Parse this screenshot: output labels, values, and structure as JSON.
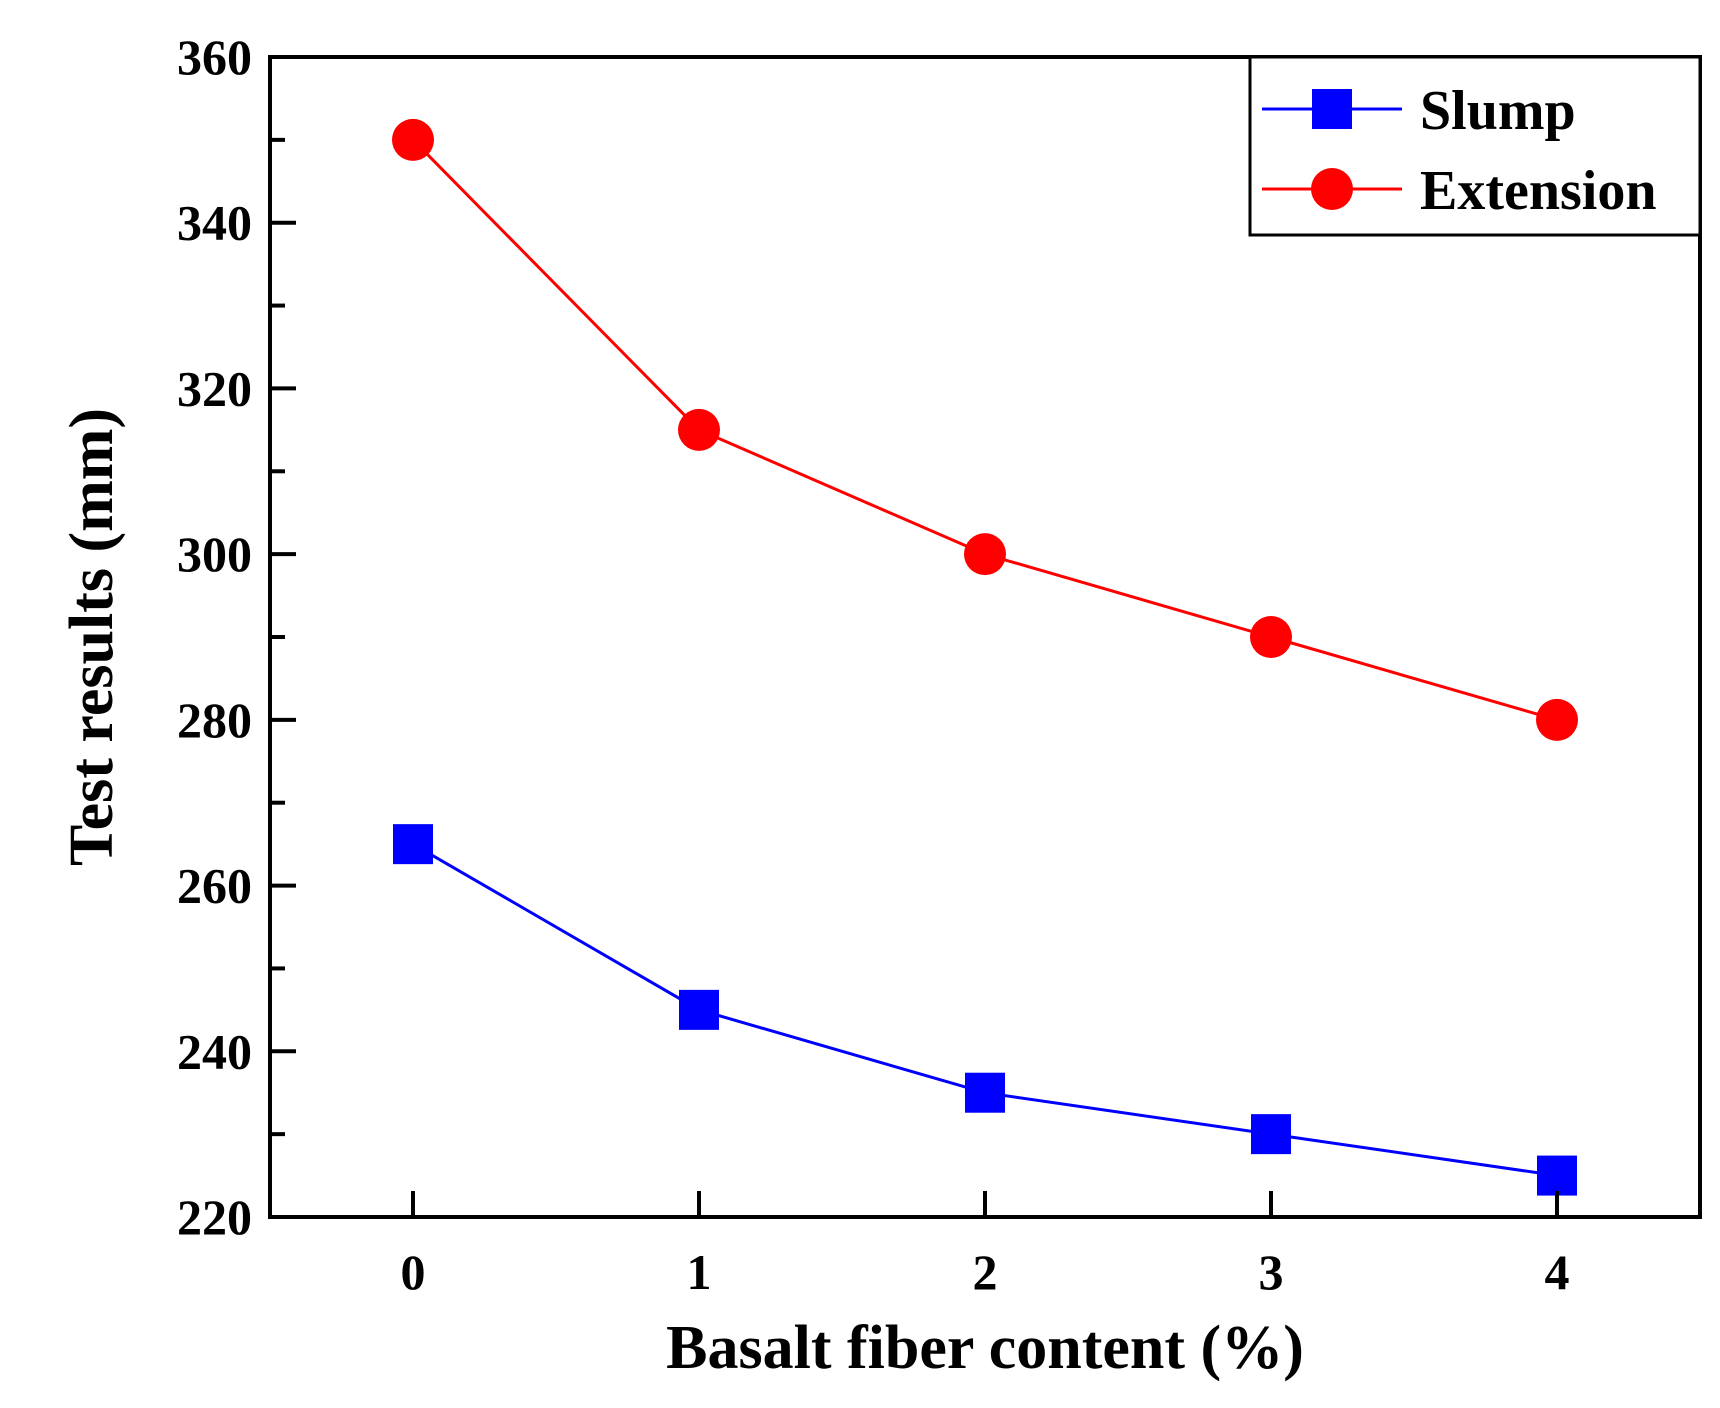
{
  "chart_data": {
    "type": "line",
    "title": "",
    "xlabel": "Basalt fiber content (%)",
    "ylabel": "Test results (mm)",
    "x": [
      0,
      1,
      2,
      3,
      4
    ],
    "x_tick_labels": [
      "0",
      "1",
      "2",
      "3",
      "4"
    ],
    "xlim": [
      -0.5,
      4.5
    ],
    "ylim": [
      220,
      360
    ],
    "y_ticks": [
      220,
      240,
      260,
      280,
      300,
      320,
      340,
      360
    ],
    "y_tick_labels": [
      "220",
      "240",
      "260",
      "280",
      "300",
      "320",
      "340",
      "360"
    ],
    "y_minor_step": 10,
    "grid": false,
    "legend_position": "top-right",
    "series": [
      {
        "name": "Slump",
        "values": [
          265,
          245,
          235,
          230,
          225
        ],
        "color": "#0000ff",
        "marker": "square"
      },
      {
        "name": "Extension",
        "values": [
          350,
          315,
          300,
          290,
          280
        ],
        "color": "#ff0000",
        "marker": "circle"
      }
    ]
  }
}
